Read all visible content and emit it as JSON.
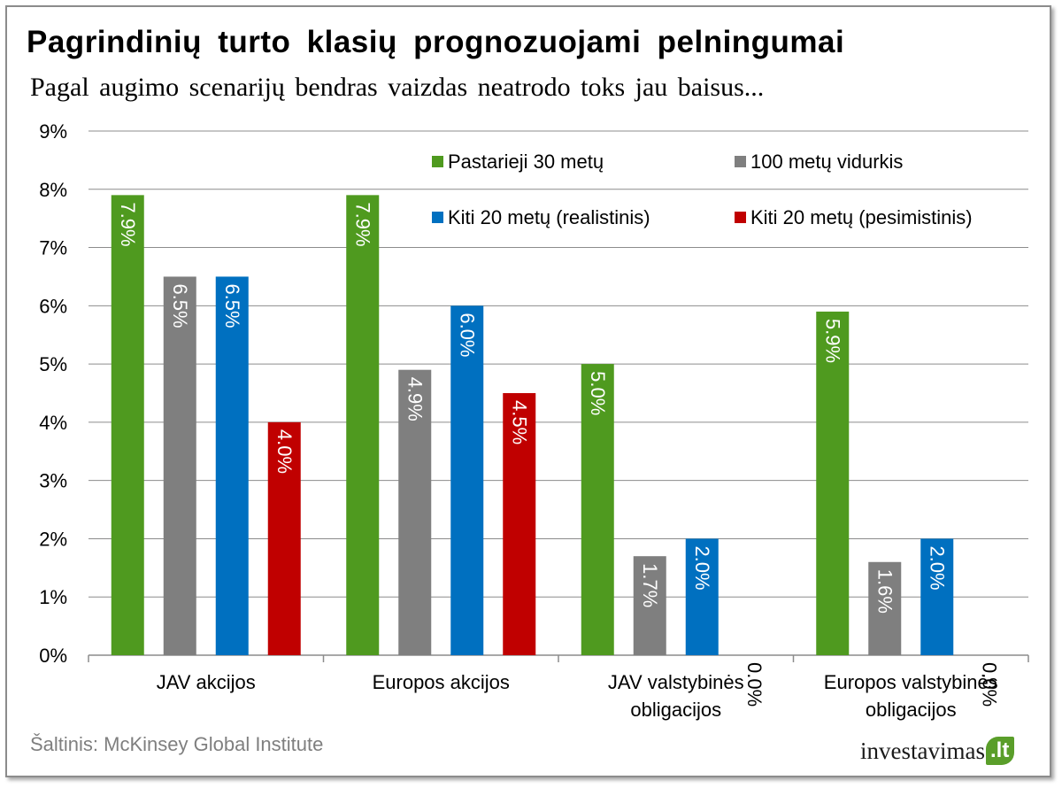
{
  "title": "Pagrindinių turto klasių prognozuojami pelningumai",
  "subtitle": "Pagal augimo scenarijų bendras vaizdas neatrodo toks jau baisus...",
  "source": "Šaltinis: McKinsey Global Institute",
  "logo": {
    "name": "investavimas",
    "tld": ".lt"
  },
  "chart_data": {
    "type": "bar",
    "categories": [
      [
        "JAV akcijos"
      ],
      [
        "Europos akcijos"
      ],
      [
        "JAV valstybinės",
        "obligacijos"
      ],
      [
        "Europos valstybinės",
        "obligacijos"
      ]
    ],
    "series": [
      {
        "name": "Pastarieji 30 metų",
        "color": "#4f9a1f",
        "values": [
          7.9,
          7.9,
          5.0,
          5.9
        ],
        "labels": [
          "7.9%",
          "7.9%",
          "5.0%",
          "5.9%"
        ]
      },
      {
        "name": "100 metų vidurkis",
        "color": "#7f7f7f",
        "values": [
          6.5,
          4.9,
          1.7,
          1.6
        ],
        "labels": [
          "6.5%",
          "4.9%",
          "1.7%",
          "1.6%"
        ]
      },
      {
        "name": "Kiti 20 metų (realistinis)",
        "color": "#0070c0",
        "values": [
          6.5,
          6.0,
          2.0,
          2.0
        ],
        "labels": [
          "6.5%",
          "6.0%",
          "2.0%",
          "2.0%"
        ]
      },
      {
        "name": "Kiti 20 metų (pesimistinis)",
        "color": "#c00000",
        "values": [
          4.0,
          4.5,
          0.0,
          0.0
        ],
        "labels": [
          "4.0%",
          "4.5%",
          "0.0%",
          "0.0%"
        ]
      }
    ],
    "yticks": [
      "0%",
      "1%",
      "2%",
      "3%",
      "4%",
      "5%",
      "6%",
      "7%",
      "8%",
      "9%"
    ],
    "ylim": [
      0,
      9
    ],
    "grid": true,
    "legend_position": "top-right"
  }
}
